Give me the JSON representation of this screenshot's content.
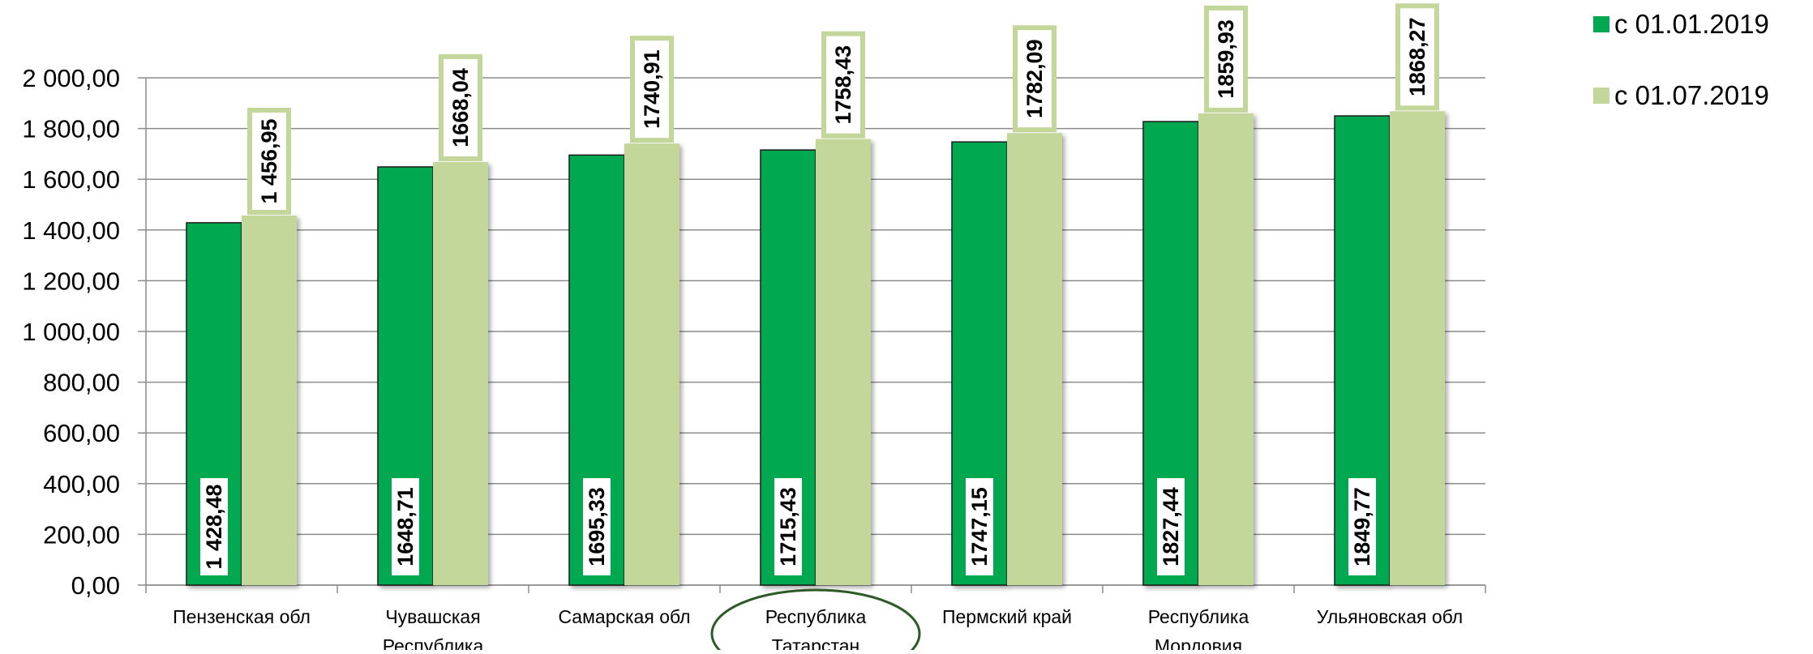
{
  "chart_data": {
    "type": "bar",
    "title": "",
    "xlabel": "",
    "ylabel": "",
    "ylim": [
      0,
      2000
    ],
    "y_ticks": [
      "0,00",
      "200,00",
      "400,00",
      "600,00",
      "800,00",
      "1 000,00",
      "1 200,00",
      "1 400,00",
      "1 600,00",
      "1 800,00",
      "2 000,00"
    ],
    "grid": true,
    "legend_position": "top-right",
    "categories": [
      "Пензенская обл",
      "Чувашская Республика",
      "Самарская обл",
      "Республика Татарстан",
      "Пермский край",
      "Республика Мордовия",
      "Ульяновская обл"
    ],
    "highlighted_category": "Республика Татарстан",
    "series": [
      {
        "name": "с 01.01.2019",
        "color": "#00a94f",
        "values": [
          1428.48,
          1648.71,
          1695.33,
          1715.43,
          1747.15,
          1827.44,
          1849.77
        ],
        "labels": [
          "1 428,48",
          "1648,71",
          "1695,33",
          "1715,43",
          "1747,15",
          "1827,44",
          "1849,77"
        ]
      },
      {
        "name": "с 01.07.2019",
        "color": "#c4d79b",
        "values": [
          1456.95,
          1668.04,
          1740.91,
          1758.43,
          1782.09,
          1859.93,
          1868.27
        ],
        "labels": [
          "1 456,95",
          "1668,04",
          "1740,91",
          "1758,43",
          "1782,09",
          "1859,93",
          "1868,27"
        ]
      }
    ]
  }
}
